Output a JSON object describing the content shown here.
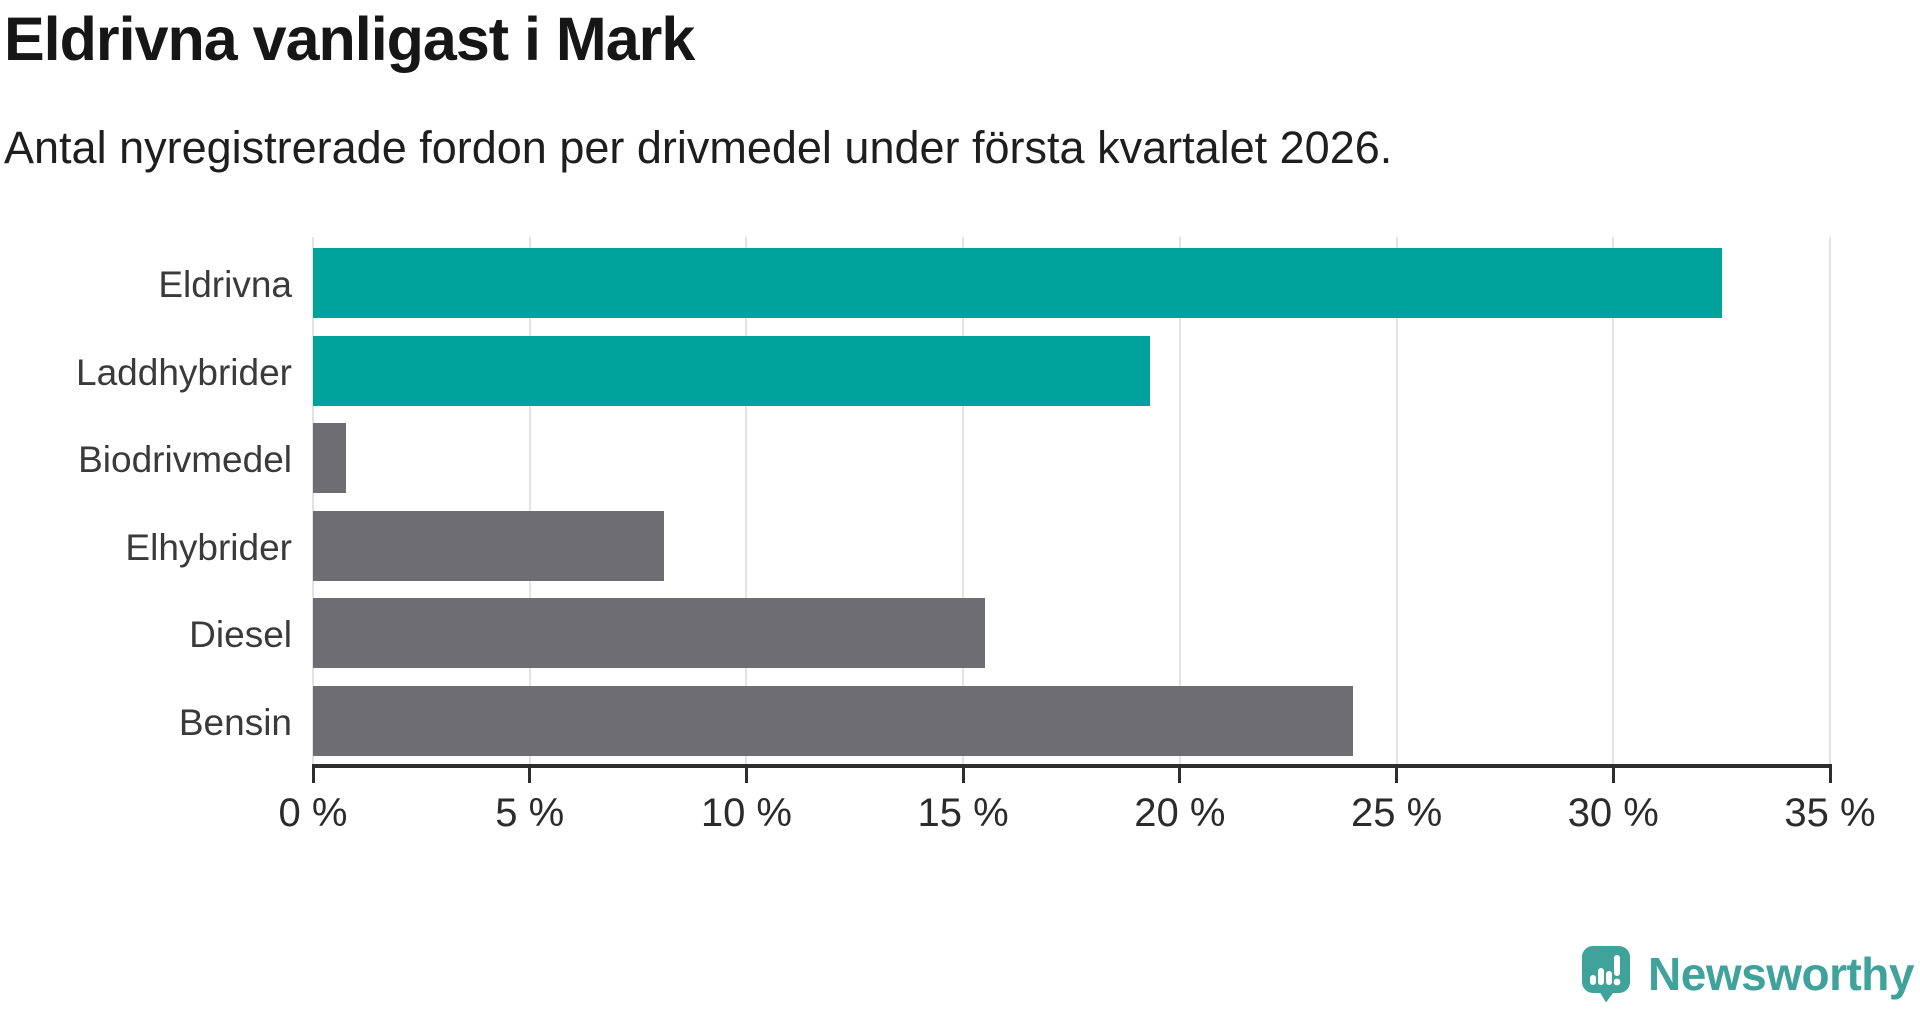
{
  "title": "Eldrivna vanligast i Mark",
  "subtitle": "Antal nyregistrerade fordon per drivmedel under första kvartalet 2026.",
  "chart_data": {
    "type": "bar",
    "orientation": "horizontal",
    "title": "Eldrivna vanligast i Mark",
    "subtitle": "Antal nyregistrerade fordon per drivmedel under första kvartalet 2026.",
    "categories": [
      "Eldrivna",
      "Laddhybrider",
      "Biodrivmedel",
      "Elhybrider",
      "Diesel",
      "Bensin"
    ],
    "values": [
      32.5,
      19.3,
      0.75,
      8.1,
      15.5,
      24
    ],
    "unit": "%",
    "xlim": [
      0,
      35
    ],
    "x_tick_values": [
      0,
      5,
      10,
      15,
      20,
      25,
      30,
      35
    ],
    "x_tick_labels": [
      "0 %",
      "5 %",
      "10 %",
      "15 %",
      "20 %",
      "25 %",
      "30 %",
      "35 %"
    ],
    "grid": "vertical",
    "legend": "none",
    "highlight_color": "#00a39b",
    "base_color": "#6d6d72",
    "bar_colors": [
      "#00a39b",
      "#00a39b",
      "#6d6d72",
      "#6d6d72",
      "#6d6d72",
      "#6d6d72"
    ],
    "gridline_color": "#e3e3e3",
    "axis_color": "#2e2e2e"
  },
  "branding": {
    "logo_text": "Newsworthy",
    "logo_color": "#3fa29b",
    "logo_icon": "newsworthy-speech-bubble-chart-icon"
  }
}
